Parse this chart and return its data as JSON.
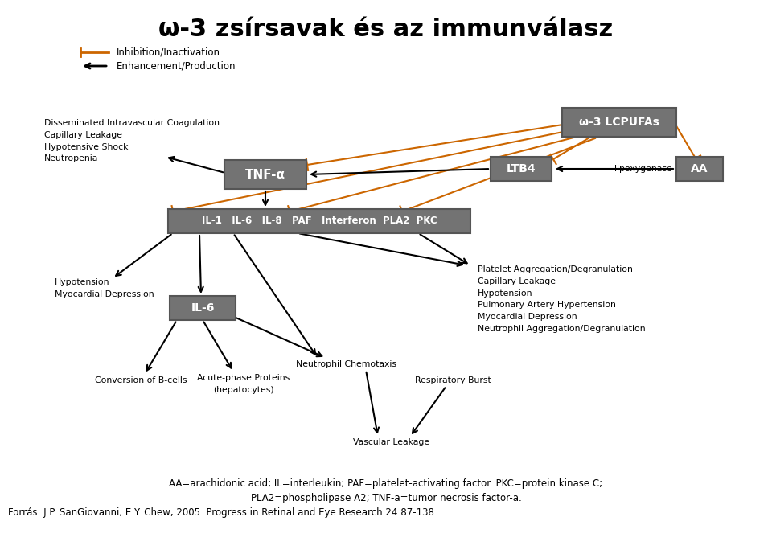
{
  "title": "ω-3 zsírsavak és az immunválasz",
  "title_fontsize": 22,
  "bg_color": "#ffffff",
  "box_fill": "#737373",
  "box_edge": "#555555",
  "box_text": "#ffffff",
  "black": "#000000",
  "orange": "#cc6600",
  "legend_inhibit": "Inhibition/Inactivation",
  "legend_enhance": "Enhancement/Production",
  "fn1": "AA=arachidonic acid; IL=interleukin; PAF=platelet-activating factor. PKC=protein kinase C;",
  "fn2": "PLA2=phospholipase A2; TNF-a=tumor necrosis factor-a.",
  "fn3": "Forrás: J.P. SanGiovanni, E.Y. Chew, 2005. Progress in Retinal and Eye Research 24:87-138."
}
